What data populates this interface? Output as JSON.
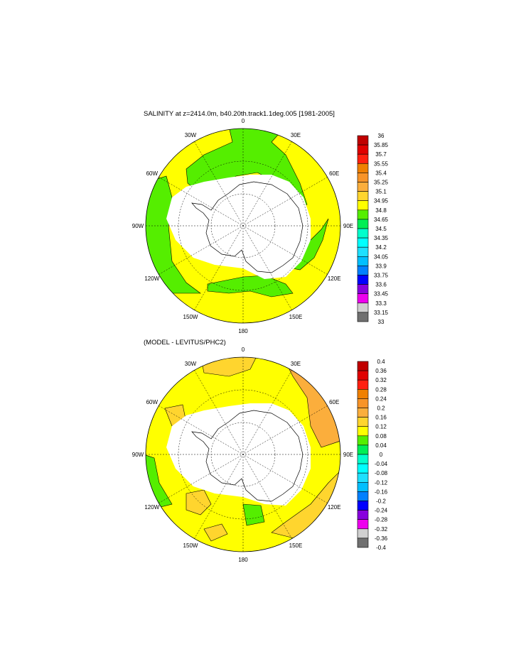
{
  "panels": [
    {
      "title": "SALINITY at z=2414.0m, b40.20th.track1.1deg.005 [1981-2005]",
      "lon_labels": [
        "0",
        "30E",
        "60E",
        "90E",
        "120E",
        "150E",
        "180",
        "150W",
        "120W",
        "90W",
        "60W",
        "30W"
      ],
      "colorbar": {
        "labels": [
          "36",
          "35.85",
          "35.7",
          "35.55",
          "35.4",
          "35.25",
          "35.1",
          "34.95",
          "34.8",
          "34.65",
          "34.5",
          "34.35",
          "34.2",
          "34.05",
          "33.9",
          "33.75",
          "33.6",
          "33.45",
          "33.3",
          "33.15",
          "33"
        ]
      }
    },
    {
      "title": "(MODEL - LEVITUS/PHC2)",
      "lon_labels": [
        "0",
        "30E",
        "60E",
        "90E",
        "120E",
        "150E",
        "180",
        "150W",
        "120W",
        "90W",
        "60W",
        "30W"
      ],
      "colorbar": {
        "labels": [
          "0.4",
          "0.36",
          "0.32",
          "0.28",
          "0.24",
          "0.2",
          "0.16",
          "0.12",
          "0.08",
          "0.04",
          "0",
          "-0.04",
          "-0.08",
          "-0.12",
          "-0.16",
          "-0.2",
          "-0.24",
          "-0.28",
          "-0.32",
          "-0.36",
          "-0.4"
        ]
      }
    }
  ],
  "colors": [
    "#c00000",
    "#e00000",
    "#ff2010",
    "#f08000",
    "#f89428",
    "#fbae3c",
    "#ffd52e",
    "#ffff00",
    "#55ee00",
    "#00ee55",
    "#00ffcc",
    "#00ffff",
    "#1ee0ff",
    "#00bfff",
    "#0080ff",
    "#0000ff",
    "#8800dd",
    "#ee00ee",
    "#d0d0d0",
    "#707070"
  ]
}
